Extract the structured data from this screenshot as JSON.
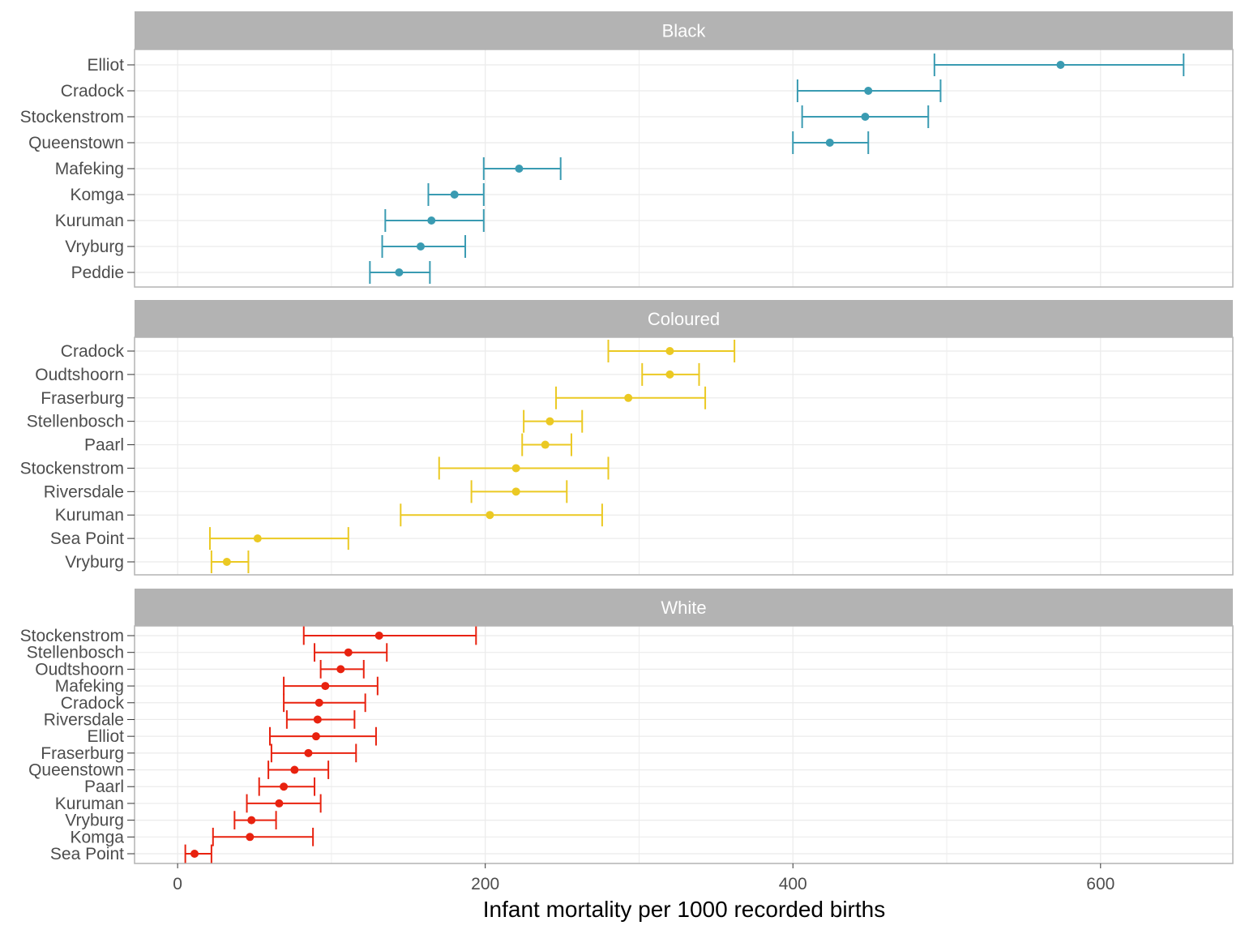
{
  "chart_data": {
    "type": "errorbar",
    "xlabel": "Infant mortality per 1000 recorded births",
    "xticks": [
      0,
      200,
      400,
      600
    ],
    "xlim": [
      -28,
      686
    ],
    "grid": true,
    "panels": [
      {
        "label": "Black",
        "color": "#3a9bb2",
        "rows": [
          {
            "name": "Elliot",
            "value": 574,
            "low": 492,
            "high": 654
          },
          {
            "name": "Cradock",
            "value": 449,
            "low": 403,
            "high": 496
          },
          {
            "name": "Stockenstrom",
            "value": 447,
            "low": 406,
            "high": 488
          },
          {
            "name": "Queenstown",
            "value": 424,
            "low": 400,
            "high": 449
          },
          {
            "name": "Mafeking",
            "value": 222,
            "low": 199,
            "high": 249
          },
          {
            "name": "Komga",
            "value": 180,
            "low": 163,
            "high": 199
          },
          {
            "name": "Kuruman",
            "value": 165,
            "low": 135,
            "high": 199
          },
          {
            "name": "Vryburg",
            "value": 158,
            "low": 133,
            "high": 187
          },
          {
            "name": "Peddie",
            "value": 144,
            "low": 125,
            "high": 164
          }
        ]
      },
      {
        "label": "Coloured",
        "color": "#ebc923",
        "rows": [
          {
            "name": "Cradock",
            "value": 320,
            "low": 280,
            "high": 362
          },
          {
            "name": "Oudtshoorn",
            "value": 320,
            "low": 302,
            "high": 339
          },
          {
            "name": "Fraserburg",
            "value": 293,
            "low": 246,
            "high": 343
          },
          {
            "name": "Stellenbosch",
            "value": 242,
            "low": 225,
            "high": 263
          },
          {
            "name": "Paarl",
            "value": 239,
            "low": 224,
            "high": 256
          },
          {
            "name": "Stockenstrom",
            "value": 220,
            "low": 170,
            "high": 280
          },
          {
            "name": "Riversdale",
            "value": 220,
            "low": 191,
            "high": 253
          },
          {
            "name": "Kuruman",
            "value": 203,
            "low": 145,
            "high": 276
          },
          {
            "name": "Sea Point",
            "value": 52,
            "low": 21,
            "high": 111
          },
          {
            "name": "Vryburg",
            "value": 32,
            "low": 22,
            "high": 46
          }
        ]
      },
      {
        "label": "White",
        "color": "#e8220f",
        "rows": [
          {
            "name": "Stockenstrom",
            "value": 131,
            "low": 82,
            "high": 194
          },
          {
            "name": "Stellenbosch",
            "value": 111,
            "low": 89,
            "high": 136
          },
          {
            "name": "Oudtshoorn",
            "value": 106,
            "low": 93,
            "high": 121
          },
          {
            "name": "Mafeking",
            "value": 96,
            "low": 69,
            "high": 130
          },
          {
            "name": "Cradock",
            "value": 92,
            "low": 69,
            "high": 122
          },
          {
            "name": "Riversdale",
            "value": 91,
            "low": 71,
            "high": 115
          },
          {
            "name": "Elliot",
            "value": 90,
            "low": 60,
            "high": 129
          },
          {
            "name": "Fraserburg",
            "value": 85,
            "low": 61,
            "high": 116
          },
          {
            "name": "Queenstown",
            "value": 76,
            "low": 59,
            "high": 98
          },
          {
            "name": "Paarl",
            "value": 69,
            "low": 53,
            "high": 89
          },
          {
            "name": "Kuruman",
            "value": 66,
            "low": 45,
            "high": 93
          },
          {
            "name": "Vryburg",
            "value": 48,
            "low": 37,
            "high": 64
          },
          {
            "name": "Komga",
            "value": 47,
            "low": 23,
            "high": 88
          },
          {
            "name": "Sea Point",
            "value": 11,
            "low": 5,
            "high": 22
          }
        ]
      }
    ]
  }
}
